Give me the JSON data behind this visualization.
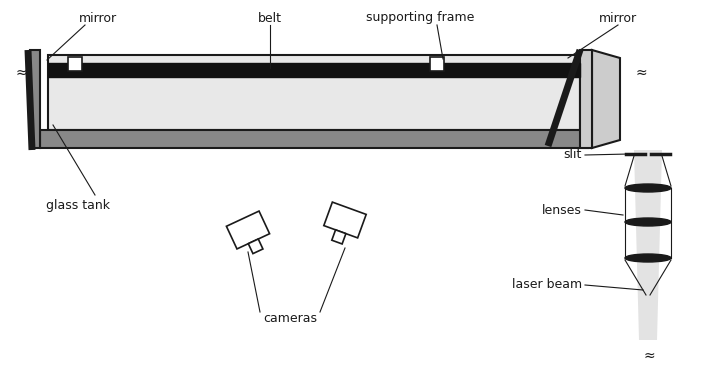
{
  "bg_color": "#ffffff",
  "line_color": "#1a1a1a",
  "gray_mid": "#888888",
  "gray_light": "#cccccc",
  "gray_dark": "#666666",
  "tank_fill": "#e8e8e8",
  "belt_color": "#111111",
  "beam_fill": "#e0e0e0",
  "figsize": [
    7.05,
    3.78
  ],
  "dpi": 100,
  "labels": {
    "mirror_left": "mirror",
    "mirror_right": "mirror",
    "belt": "belt",
    "supporting_frame": "supporting frame",
    "glass_tank": "glass tank",
    "slit": "slit",
    "lenses": "lenses",
    "laser_beam": "laser beam",
    "cameras": "cameras"
  }
}
